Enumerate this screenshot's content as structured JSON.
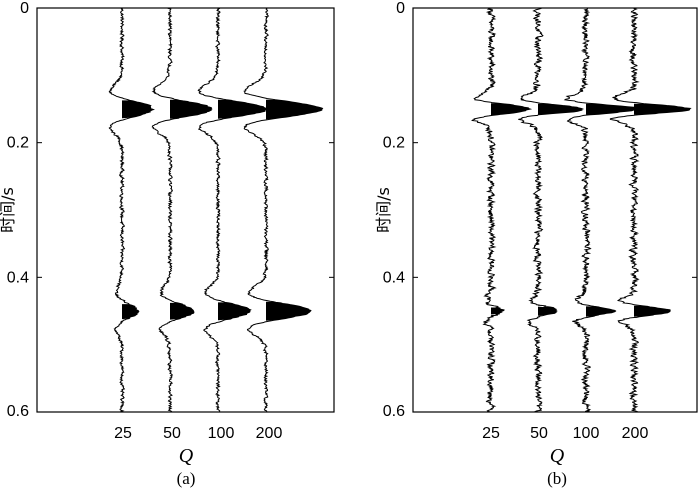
{
  "chart_data": [
    {
      "panel_label": "(a)",
      "type": "line",
      "subtype": "seismic-wiggle-traces",
      "xlabel": "Q",
      "ylabel": "时间/s",
      "ylim": [
        0,
        0.6
      ],
      "y_inverted": true,
      "y_ticks": [
        "0",
        "0.2",
        "0.4",
        "0.6"
      ],
      "categories": [
        "25",
        "50",
        "100",
        "200"
      ],
      "events_time_s": [
        0.15,
        0.45
      ],
      "series": [
        {
          "category": "25",
          "event_amplitudes": [
            0.55,
            0.28
          ]
        },
        {
          "category": "50",
          "event_amplitudes": [
            0.75,
            0.42
          ]
        },
        {
          "category": "100",
          "event_amplitudes": [
            0.88,
            0.58
          ]
        },
        {
          "category": "200",
          "event_amplitudes": [
            1.0,
            0.8
          ]
        }
      ],
      "wavelet": "broad",
      "noise_level": 0.05,
      "fill": "positive-black"
    },
    {
      "panel_label": "(b)",
      "type": "line",
      "subtype": "seismic-wiggle-traces",
      "xlabel": "Q",
      "ylabel": "时间/s",
      "ylim": [
        0,
        0.6
      ],
      "y_inverted": true,
      "y_ticks": [
        "0",
        "0.2",
        "0.4",
        "0.6"
      ],
      "categories": [
        "25",
        "50",
        "100",
        "200"
      ],
      "events_time_s": [
        0.15,
        0.45
      ],
      "series": [
        {
          "category": "25",
          "event_amplitudes": [
            0.72,
            0.22
          ]
        },
        {
          "category": "50",
          "event_amplitudes": [
            0.82,
            0.38
          ]
        },
        {
          "category": "100",
          "event_amplitudes": [
            0.92,
            0.5
          ]
        },
        {
          "category": "200",
          "event_amplitudes": [
            1.0,
            0.65
          ]
        }
      ],
      "wavelet": "narrow",
      "noise_level": 0.1,
      "fill": "positive-black"
    }
  ]
}
